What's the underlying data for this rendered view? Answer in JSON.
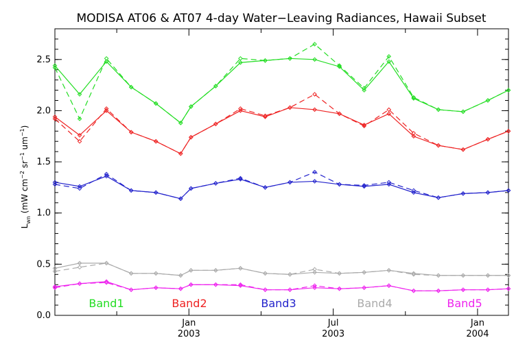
{
  "chart_data": {
    "type": "line",
    "title": "MODISA AT06 & AT07 4-day Water−Leaving Radiances, Hawaii Subset",
    "ylabel": "L",
    "ylabel_sub": "wn",
    "ylabel_units": " (mW cm",
    "ylabel_sup1": "−2",
    "ylabel_mid": " sr",
    "ylabel_sup2": "−1",
    "ylabel_end": " um",
    "ylabel_sup3": "−1",
    "ylabel_close": ")",
    "ylim": [
      0.0,
      2.8
    ],
    "yticks": [
      0.0,
      0.5,
      1.0,
      1.5,
      2.0,
      2.5
    ],
    "ytick_labels": [
      "0.0",
      "0.5",
      "1.0",
      "1.5",
      "2.0",
      "2.5"
    ],
    "xlim": [
      0,
      22
    ],
    "xticks_major": [
      6.5,
      13.5,
      20.5
    ],
    "xtick_labels": [
      {
        "month": "Jan",
        "year": "2003"
      },
      {
        "month": "Jul",
        "year": "2003"
      },
      {
        "month": "Jan",
        "year": "2004"
      }
    ],
    "xticks_minor": [
      3.0,
      10.0,
      17.0
    ],
    "x": [
      0,
      1.2,
      2.5,
      3.7,
      4.9,
      6.1,
      6.6,
      7.8,
      9.0,
      10.2,
      11.4,
      12.6,
      13.8,
      15.0,
      16.2,
      17.4,
      18.6,
      19.8,
      21.0,
      22.0
    ],
    "series": [
      {
        "name": "Band1",
        "color": "#22dd22",
        "at06": [
          2.44,
          2.16,
          2.48,
          2.23,
          2.07,
          1.88,
          2.04,
          2.24,
          2.47,
          2.49,
          2.51,
          2.5,
          2.43,
          2.2,
          2.48,
          2.12,
          2.01,
          1.99,
          2.1,
          2.2
        ],
        "at07": [
          2.42,
          1.92,
          2.51,
          2.23,
          2.07,
          1.88,
          2.04,
          2.24,
          2.51,
          2.49,
          2.51,
          2.65,
          2.44,
          2.22,
          2.53,
          2.13,
          2.01,
          1.99,
          2.1,
          2.2
        ]
      },
      {
        "name": "Band2",
        "color": "#ee2222",
        "at06": [
          1.94,
          1.76,
          2.0,
          1.79,
          1.7,
          1.58,
          1.74,
          1.87,
          2.0,
          1.94,
          2.03,
          2.01,
          1.97,
          1.86,
          1.97,
          1.75,
          1.66,
          1.62,
          1.72,
          1.8
        ],
        "at07": [
          1.92,
          1.7,
          2.02,
          1.79,
          1.7,
          1.58,
          1.74,
          1.87,
          2.02,
          1.95,
          2.03,
          2.16,
          1.97,
          1.85,
          2.01,
          1.78,
          1.66,
          1.62,
          1.72,
          1.8
        ],
        "at06_note": ""
      },
      {
        "name": "Band3",
        "color": "#2222cc",
        "at06": [
          1.3,
          1.26,
          1.36,
          1.22,
          1.2,
          1.14,
          1.24,
          1.29,
          1.33,
          1.25,
          1.3,
          1.31,
          1.28,
          1.26,
          1.28,
          1.2,
          1.15,
          1.19,
          1.2,
          1.22
        ],
        "at07": [
          1.28,
          1.24,
          1.38,
          1.22,
          1.2,
          1.14,
          1.24,
          1.29,
          1.34,
          1.25,
          1.3,
          1.4,
          1.28,
          1.27,
          1.3,
          1.22,
          1.15,
          1.19,
          1.2,
          1.22
        ]
      },
      {
        "name": "Band4",
        "color": "#aaaaaa",
        "at06": [
          0.46,
          0.51,
          0.51,
          0.41,
          0.41,
          0.39,
          0.44,
          0.44,
          0.46,
          0.41,
          0.4,
          0.42,
          0.41,
          0.42,
          0.44,
          0.41,
          0.39,
          0.39,
          0.39,
          0.39
        ],
        "at07": [
          0.43,
          0.47,
          0.51,
          0.41,
          0.41,
          0.39,
          0.44,
          0.44,
          0.46,
          0.41,
          0.4,
          0.45,
          0.41,
          0.42,
          0.44,
          0.4,
          0.39,
          0.39,
          0.39,
          0.39
        ]
      },
      {
        "name": "Band5",
        "color": "#ee22ee",
        "at06": [
          0.28,
          0.31,
          0.33,
          0.25,
          0.27,
          0.26,
          0.3,
          0.3,
          0.29,
          0.25,
          0.25,
          0.27,
          0.26,
          0.27,
          0.29,
          0.24,
          0.24,
          0.25,
          0.25,
          0.26
        ],
        "at07": [
          0.27,
          0.31,
          0.32,
          0.25,
          0.27,
          0.26,
          0.3,
          0.3,
          0.3,
          0.25,
          0.25,
          0.29,
          0.26,
          0.27,
          0.29,
          0.24,
          0.24,
          0.25,
          0.25,
          0.26
        ]
      }
    ]
  }
}
